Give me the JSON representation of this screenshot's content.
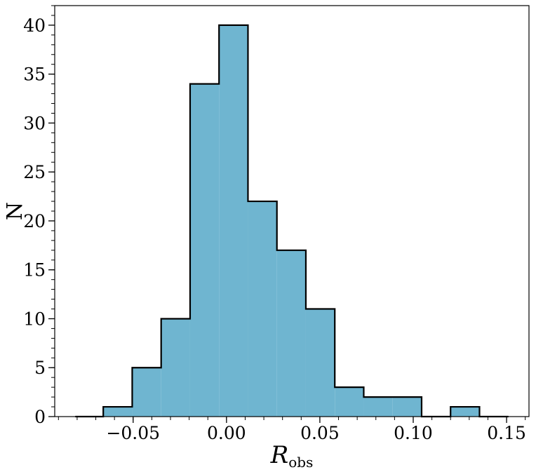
{
  "chart_data": {
    "type": "bar",
    "histogram": true,
    "title": "",
    "xlabel": "R",
    "xlabel_subscript": "obs",
    "ylabel": "N",
    "bin_edges": [
      -0.081,
      -0.066,
      -0.0505,
      -0.035,
      -0.0195,
      -0.004,
      0.0115,
      0.027,
      0.0425,
      0.058,
      0.0735,
      0.089,
      0.1045,
      0.12,
      0.1355,
      0.151
    ],
    "values": [
      0,
      1,
      5,
      10,
      34,
      40,
      22,
      17,
      11,
      3,
      2,
      2,
      0,
      1,
      0
    ],
    "xlim": [
      -0.092,
      0.162
    ],
    "ylim": [
      0,
      42
    ],
    "xticks": [
      -0.05,
      0.0,
      0.05,
      0.1,
      0.15
    ],
    "xtick_labels": [
      "−0.05",
      "0.00",
      "0.05",
      "0.10",
      "0.15"
    ],
    "yticks": [
      0,
      5,
      10,
      15,
      20,
      25,
      30,
      35,
      40
    ],
    "ytick_labels": [
      "0",
      "5",
      "10",
      "15",
      "20",
      "25",
      "30",
      "35",
      "40"
    ],
    "x_minor_step": 0.01,
    "y_minor_step": 1,
    "fill_color": "#6fb5d0",
    "edge_color": "#000000",
    "grid": false,
    "legend": "none"
  }
}
